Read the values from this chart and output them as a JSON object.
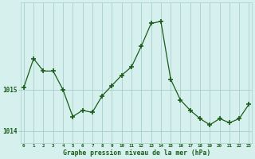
{
  "hours": [
    0,
    1,
    2,
    3,
    4,
    5,
    6,
    7,
    8,
    9,
    10,
    11,
    12,
    13,
    14,
    15,
    16,
    17,
    18,
    19,
    20,
    21,
    22,
    23
  ],
  "pressure": [
    1015.05,
    1015.75,
    1015.45,
    1015.45,
    1015.0,
    1014.35,
    1014.5,
    1014.45,
    1014.85,
    1015.1,
    1015.35,
    1015.55,
    1016.05,
    1016.6,
    1016.65,
    1015.25,
    1014.75,
    1014.5,
    1014.3,
    1014.15,
    1014.3,
    1014.2,
    1014.3,
    1014.65
  ],
  "line_color": "#1a5c1a",
  "marker_color": "#1a5c1a",
  "bg_color": "#d6f0ee",
  "grid_color": "#a8cece",
  "xlabel": "Graphe pression niveau de la mer (hPa)",
  "xlabel_color": "#1a5c1a",
  "tick_label_color": "#1a5c1a",
  "ylabel_ticks": [
    1014,
    1015
  ],
  "ylim": [
    1013.7,
    1017.1
  ],
  "xlim": [
    -0.3,
    23.3
  ],
  "figwidth": 3.2,
  "figheight": 2.0,
  "dpi": 100
}
